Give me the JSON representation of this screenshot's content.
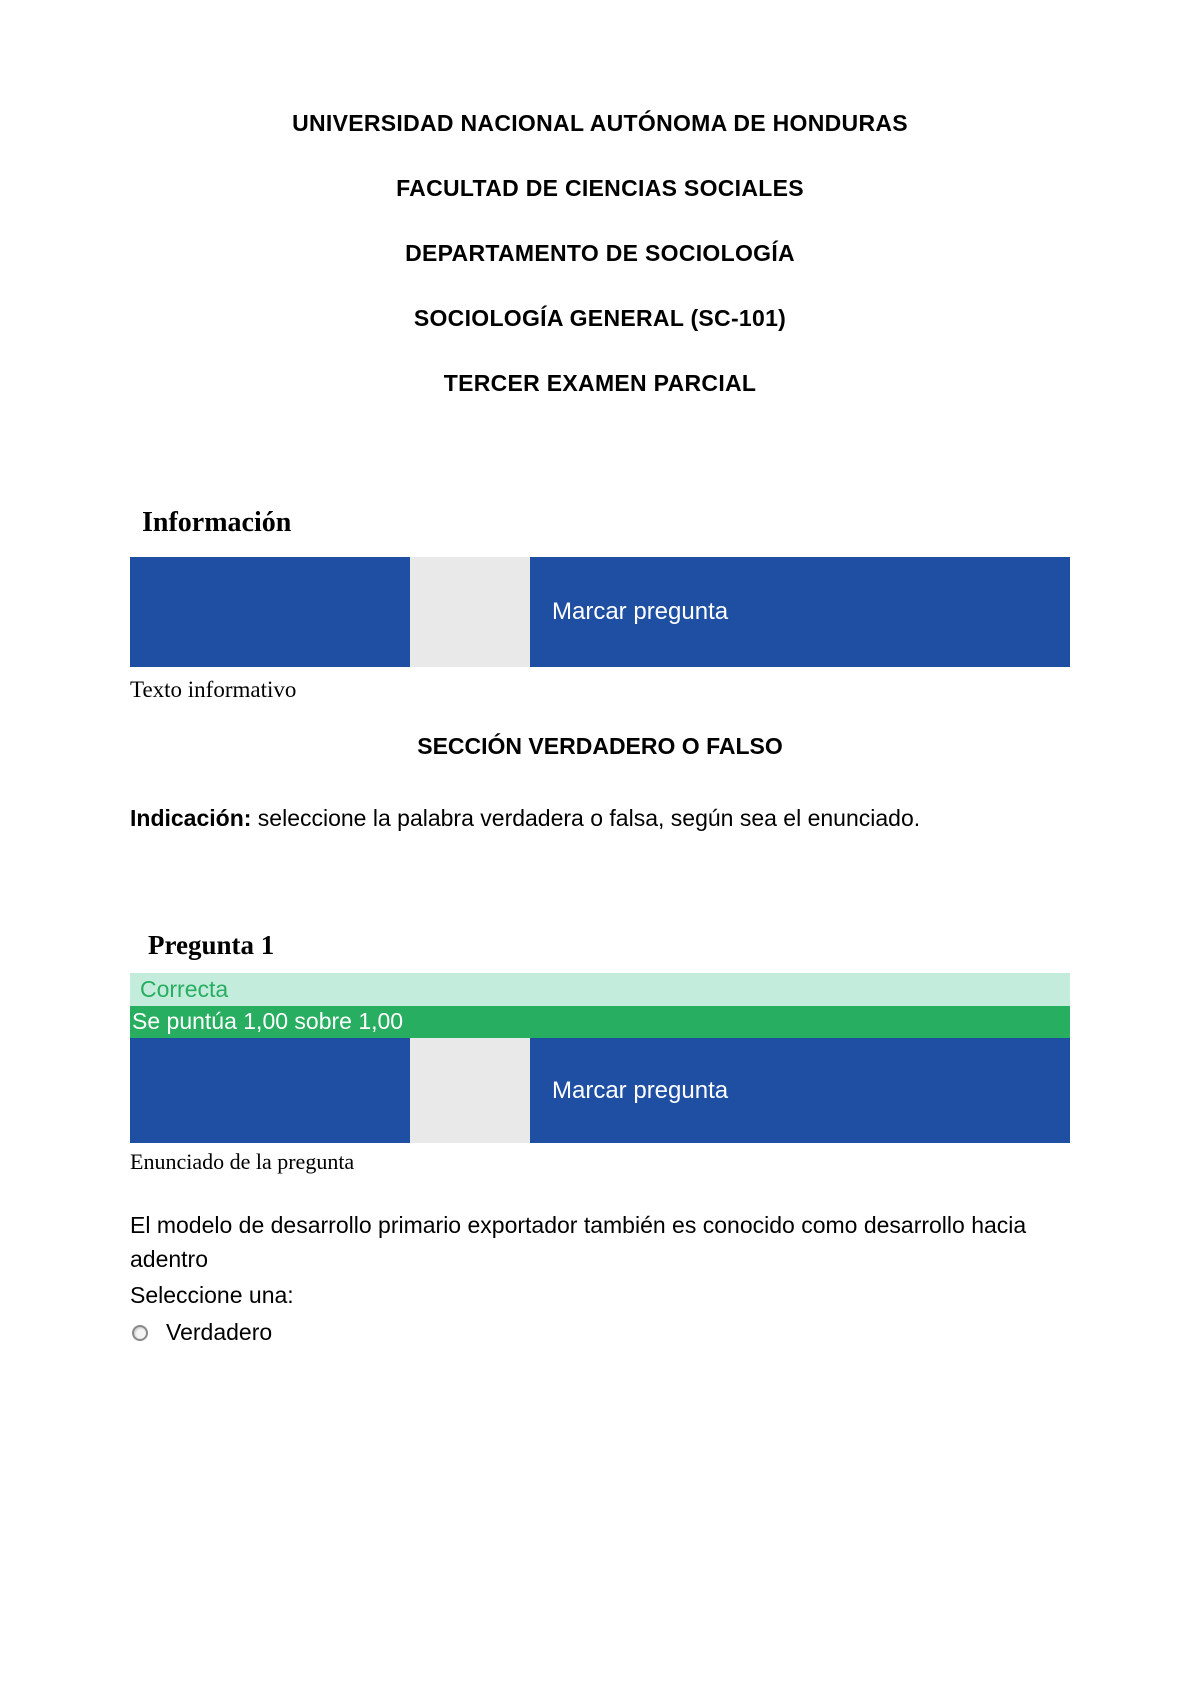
{
  "header": {
    "line1": "UNIVERSIDAD NACIONAL AUTÓNOMA DE HONDURAS",
    "line2": "FACULTAD DE CIENCIAS SOCIALES",
    "line3": "DEPARTAMENTO DE SOCIOLOGÍA",
    "line4": "SOCIOLOGÍA GENERAL (SC-101)",
    "line5": "TERCER EXAMEN PARCIAL"
  },
  "info": {
    "heading": "Información",
    "flag_label": "Marcar pregunta",
    "subtext": "Texto informativo"
  },
  "section": {
    "title": "SECCIÓN VERDADERO O FALSO",
    "instruction_label": "Indicación:",
    "instruction_text": " seleccione la palabra verdadera o falsa, según sea el enunciado."
  },
  "question1": {
    "heading": "Pregunta 1",
    "status": "Correcta",
    "score": "Se puntúa 1,00 sobre 1,00",
    "flag_label": "Marcar pregunta",
    "enunciado_label": "Enunciado de la pregunta",
    "text": "El modelo de desarrollo primario exportador también es conocido como desarrollo hacia adentro",
    "select_label": "Seleccione una:",
    "option_true": "Verdadero"
  },
  "colors": {
    "blue": "#1e4fa3",
    "green_dark": "#27ae60",
    "green_light": "#c3ecdd",
    "gap_gray": "#e9e9e9",
    "text_black": "#000000",
    "white": "#ffffff"
  }
}
